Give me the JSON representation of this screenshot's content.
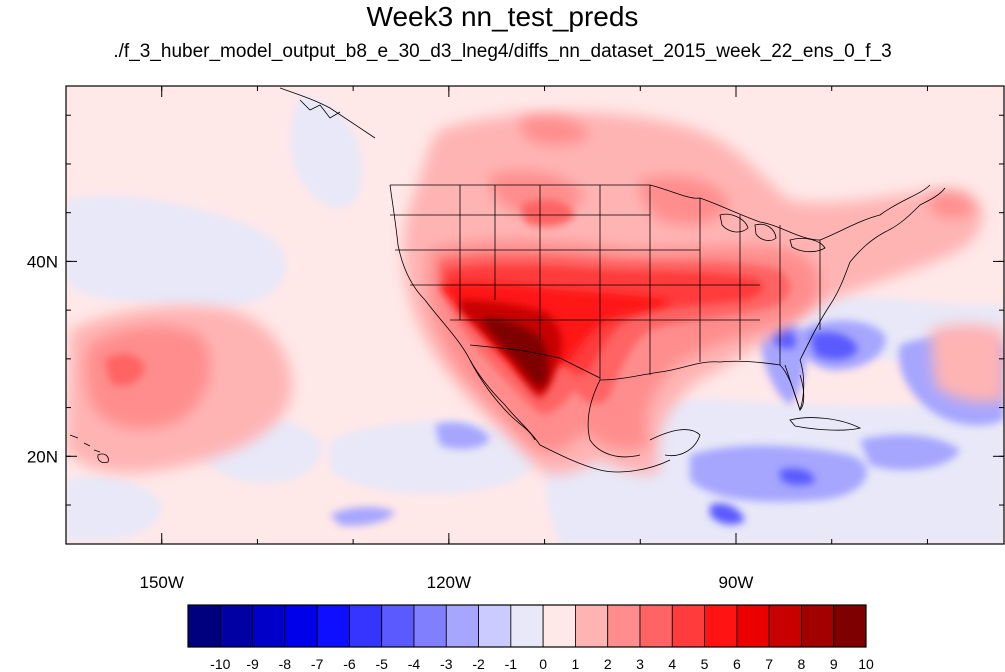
{
  "title": "Week3 nn_test_preds",
  "subtitle": "./f_3_huber_model_output_b8_e_30_d3_lneg4/diffs_nn_dataset_2015_week_22_ens_0_f_3",
  "map": {
    "projection": "cylindrical-equidistant",
    "lon_range": [
      -160,
      -62
    ],
    "lat_range": [
      11,
      58
    ],
    "lon_ticks": [
      {
        "value": -150,
        "label": "150W"
      },
      {
        "value": -120,
        "label": "120W"
      },
      {
        "value": -90,
        "label": "90W"
      }
    ],
    "lat_ticks": [
      {
        "value": 40,
        "label": "40N"
      },
      {
        "value": 20,
        "label": "20N"
      }
    ],
    "background_color": "#ffe8e8"
  },
  "colorbar": {
    "labels": [
      "-10",
      "-9",
      "-8",
      "-7",
      "-6",
      "-5",
      "-4",
      "-3",
      "-2",
      "-1",
      "0",
      "1",
      "2",
      "3",
      "4",
      "5",
      "6",
      "7",
      "8",
      "9",
      "10"
    ],
    "colors": [
      "#00007f",
      "#0000a3",
      "#0000c8",
      "#0000eb",
      "#0f0fff",
      "#3535ff",
      "#5a5aff",
      "#8080ff",
      "#a6a6ff",
      "#cbcbff",
      "#e8e8f8",
      "#ffe8e8",
      "#ffb4b4",
      "#ff8d8d",
      "#ff6464",
      "#ff3b3b",
      "#ff1313",
      "#eb0000",
      "#c80000",
      "#a30000",
      "#7f0000"
    ]
  }
}
